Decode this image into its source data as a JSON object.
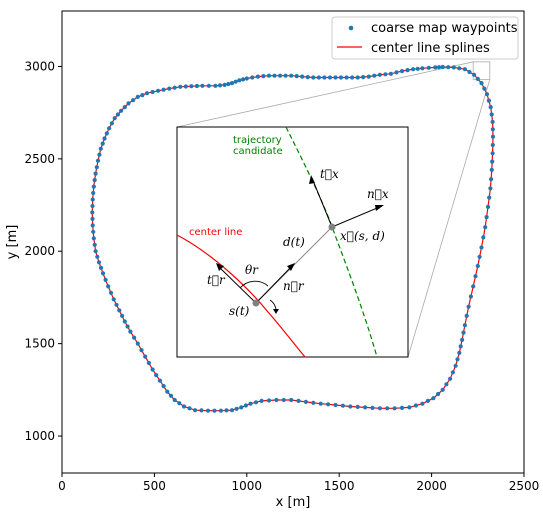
{
  "chart_data": {
    "type": "line",
    "xlabel": "x [m]",
    "ylabel": "y [m]",
    "xlim": [
      0,
      2500
    ],
    "ylim": [
      800,
      3300
    ],
    "xticks": [
      0,
      500,
      1000,
      1500,
      2000,
      2500
    ],
    "yticks": [
      1000,
      1500,
      2000,
      2500,
      3000
    ],
    "grid": false,
    "legend_position": "top-right",
    "series": [
      {
        "name": "coarse map waypoints",
        "style": "scatter",
        "color": "#1f77b4"
      },
      {
        "name": "center line splines",
        "style": "line",
        "color": "#ff0000"
      }
    ],
    "track": [
      [
        2020,
        2995
      ],
      [
        1950,
        2990
      ],
      [
        1900,
        2985
      ],
      [
        1840,
        2975
      ],
      [
        1780,
        2960
      ],
      [
        1720,
        2955
      ],
      [
        1660,
        2945
      ],
      [
        1600,
        2940
      ],
      [
        1540,
        2940
      ],
      [
        1480,
        2940
      ],
      [
        1420,
        2940
      ],
      [
        1360,
        2940
      ],
      [
        1300,
        2945
      ],
      [
        1240,
        2950
      ],
      [
        1180,
        2950
      ],
      [
        1120,
        2950
      ],
      [
        1060,
        2945
      ],
      [
        1000,
        2935
      ],
      [
        960,
        2925
      ],
      [
        920,
        2910
      ],
      [
        880,
        2900
      ],
      [
        830,
        2895
      ],
      [
        760,
        2895
      ],
      [
        700,
        2893
      ],
      [
        640,
        2890
      ],
      [
        580,
        2880
      ],
      [
        520,
        2868
      ],
      [
        460,
        2855
      ],
      [
        410,
        2835
      ],
      [
        360,
        2800
      ],
      [
        320,
        2760
      ],
      [
        285,
        2720
      ],
      [
        255,
        2665
      ],
      [
        230,
        2610
      ],
      [
        210,
        2555
      ],
      [
        195,
        2490
      ],
      [
        182,
        2420
      ],
      [
        172,
        2350
      ],
      [
        166,
        2280
      ],
      [
        164,
        2210
      ],
      [
        166,
        2140
      ],
      [
        172,
        2070
      ],
      [
        182,
        2000
      ],
      [
        200,
        1940
      ],
      [
        222,
        1880
      ],
      [
        250,
        1810
      ],
      [
        280,
        1740
      ],
      [
        310,
        1680
      ],
      [
        340,
        1620
      ],
      [
        370,
        1565
      ],
      [
        410,
        1500
      ],
      [
        450,
        1430
      ],
      [
        490,
        1360
      ],
      [
        530,
        1300
      ],
      [
        570,
        1240
      ],
      [
        610,
        1195
      ],
      [
        660,
        1160
      ],
      [
        720,
        1140
      ],
      [
        790,
        1137
      ],
      [
        860,
        1137
      ],
      [
        920,
        1140
      ],
      [
        970,
        1155
      ],
      [
        1020,
        1175
      ],
      [
        1080,
        1190
      ],
      [
        1160,
        1195
      ],
      [
        1240,
        1195
      ],
      [
        1320,
        1185
      ],
      [
        1400,
        1175
      ],
      [
        1480,
        1168
      ],
      [
        1560,
        1160
      ],
      [
        1640,
        1155
      ],
      [
        1720,
        1150
      ],
      [
        1800,
        1150
      ],
      [
        1880,
        1155
      ],
      [
        1950,
        1175
      ],
      [
        2010,
        1205
      ],
      [
        2060,
        1250
      ],
      [
        2100,
        1310
      ],
      [
        2130,
        1380
      ],
      [
        2150,
        1450
      ],
      [
        2165,
        1520
      ],
      [
        2180,
        1600
      ],
      [
        2200,
        1700
      ],
      [
        2225,
        1810
      ],
      [
        2250,
        1920
      ],
      [
        2270,
        2020
      ],
      [
        2290,
        2130
      ],
      [
        2305,
        2240
      ],
      [
        2318,
        2340
      ],
      [
        2326,
        2440
      ],
      [
        2330,
        2530
      ],
      [
        2332,
        2620
      ],
      [
        2330,
        2700
      ],
      [
        2320,
        2780
      ],
      [
        2300,
        2850
      ],
      [
        2270,
        2910
      ],
      [
        2230,
        2955
      ],
      [
        2180,
        2985
      ],
      [
        2120,
        2995
      ],
      [
        2060,
        2997
      ]
    ],
    "inset": {
      "zoom_box": [
        2225,
        2930,
        2315,
        3025
      ],
      "labels": {
        "trajectory_candidate": "trajectory\ncandidate",
        "center_line": "center line",
        "t_x": "t⃗x",
        "n_x": "n⃗x",
        "x_sd": "x⃗(s, d)",
        "d_t": "d(t)",
        "theta_r": "θr",
        "t_r": "t⃗r",
        "n_r": "n⃗r",
        "s_t": "s(t)"
      }
    }
  }
}
